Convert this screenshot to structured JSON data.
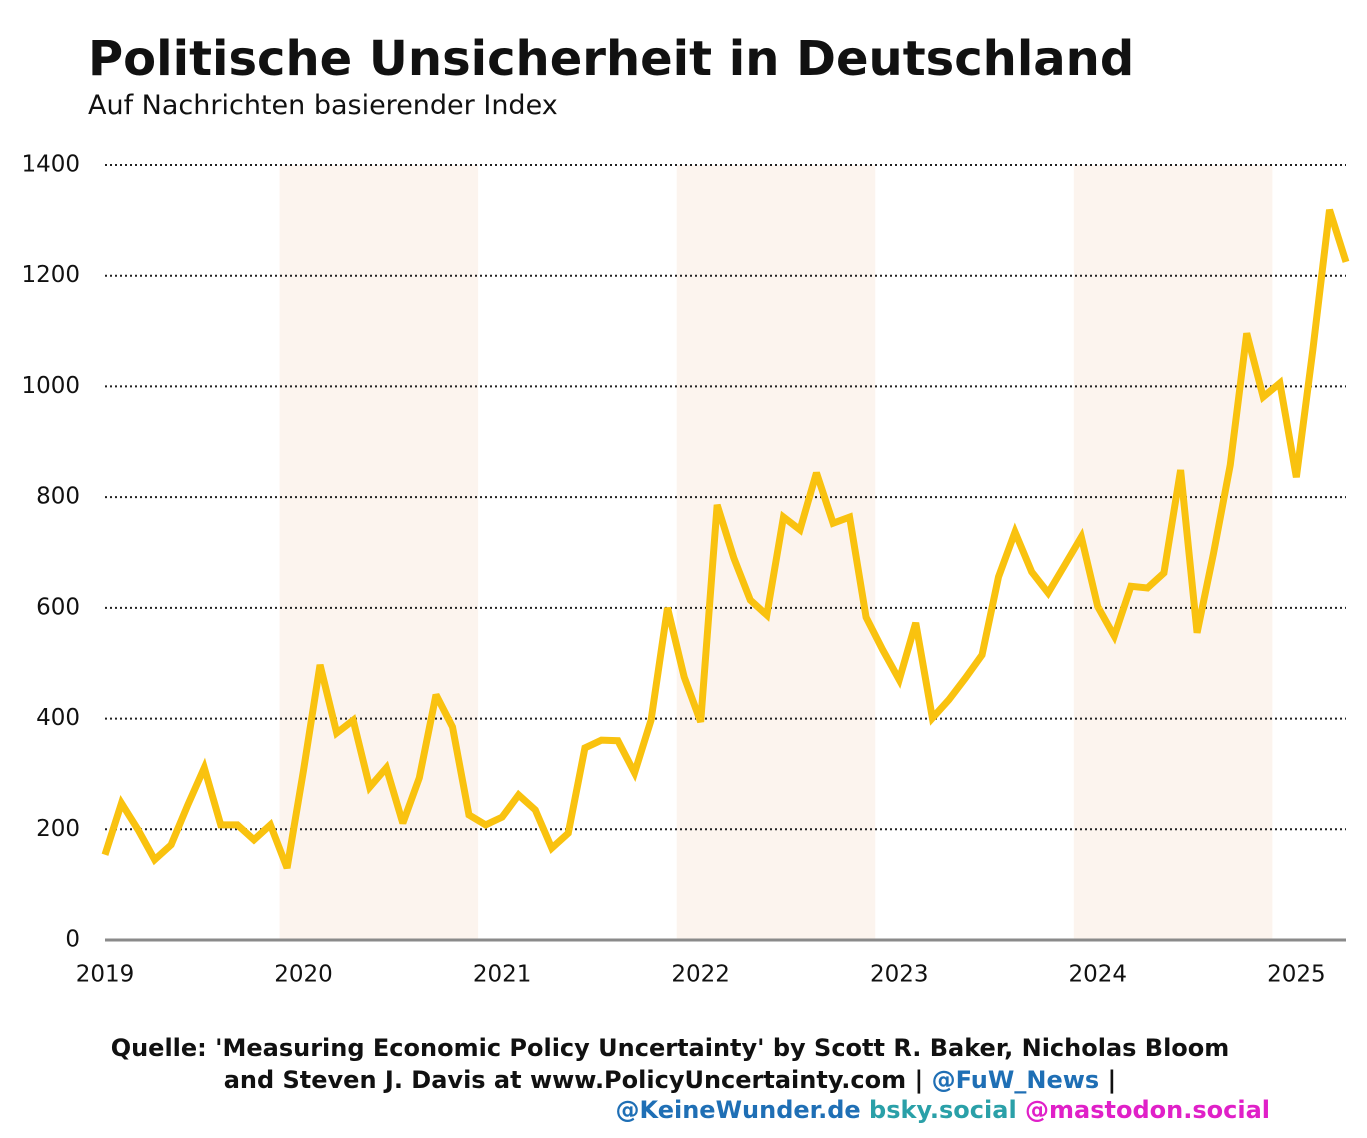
{
  "chart_data": {
    "type": "line",
    "title": "Politische Unsicherheit in Deutschland",
    "subtitle": "Auf Nachrichten basierender Index",
    "x": [
      2019.0,
      2019.083,
      2019.167,
      2019.25,
      2019.333,
      2019.417,
      2019.5,
      2019.583,
      2019.667,
      2019.75,
      2019.833,
      2019.917,
      2020.0,
      2020.083,
      2020.167,
      2020.25,
      2020.333,
      2020.417,
      2020.5,
      2020.583,
      2020.667,
      2020.75,
      2020.833,
      2020.917,
      2021.0,
      2021.083,
      2021.167,
      2021.25,
      2021.333,
      2021.417,
      2021.5,
      2021.583,
      2021.667,
      2021.75,
      2021.833,
      2021.917,
      2022.0,
      2022.083,
      2022.167,
      2022.25,
      2022.333,
      2022.417,
      2022.5,
      2022.583,
      2022.667,
      2022.75,
      2022.833,
      2022.917,
      2023.0,
      2023.083,
      2023.167,
      2023.25,
      2023.333,
      2023.417,
      2023.5,
      2023.583,
      2023.667,
      2023.75,
      2023.833,
      2023.917,
      2024.0,
      2024.083,
      2024.167,
      2024.25,
      2024.333,
      2024.417,
      2024.5,
      2024.583,
      2024.667,
      2024.75,
      2024.833,
      2024.917,
      2025.0,
      2025.083,
      2025.167,
      2025.25
    ],
    "series": [
      {
        "color": "#f9c20f",
        "values": [
          154,
          247,
          199,
          145,
          172,
          244,
          311,
          208,
          208,
          181,
          208,
          130,
          307,
          497,
          374,
          397,
          276,
          311,
          211,
          293,
          443,
          385,
          226,
          208,
          222,
          262,
          235,
          166,
          193,
          347,
          361,
          360,
          302,
          397,
          600,
          475,
          394,
          786,
          690,
          614,
          587,
          764,
          741,
          844,
          753,
          764,
          583,
          524,
          470,
          573,
          401,
          434,
          473,
          515,
          656,
          737,
          665,
          627,
          677,
          728,
          602,
          549,
          639,
          636,
          663,
          849,
          555,
          699,
          858,
          1096,
          981,
          1006,
          836,
          1066,
          1319,
          1225
        ]
      }
    ],
    "xlim": [
      2019,
      2025.25
    ],
    "xticks": [
      2019,
      2020,
      2021,
      2022,
      2023,
      2024,
      2025
    ],
    "ylim": [
      0,
      1400
    ],
    "yticks": [
      0,
      200,
      400,
      600,
      800,
      1000,
      1200,
      1400
    ],
    "grid": true,
    "source": [
      "Quelle: 'Measuring Economic Policy Uncertainty' by Scott R. Baker, Nicholas Bloom",
      "and Steven J. Davis at www.PolicyUncertainty.com |",
      "@FuW_News",
      "|",
      "@KeineWunder.de",
      "bsky.social",
      "@mastodon.social"
    ]
  }
}
